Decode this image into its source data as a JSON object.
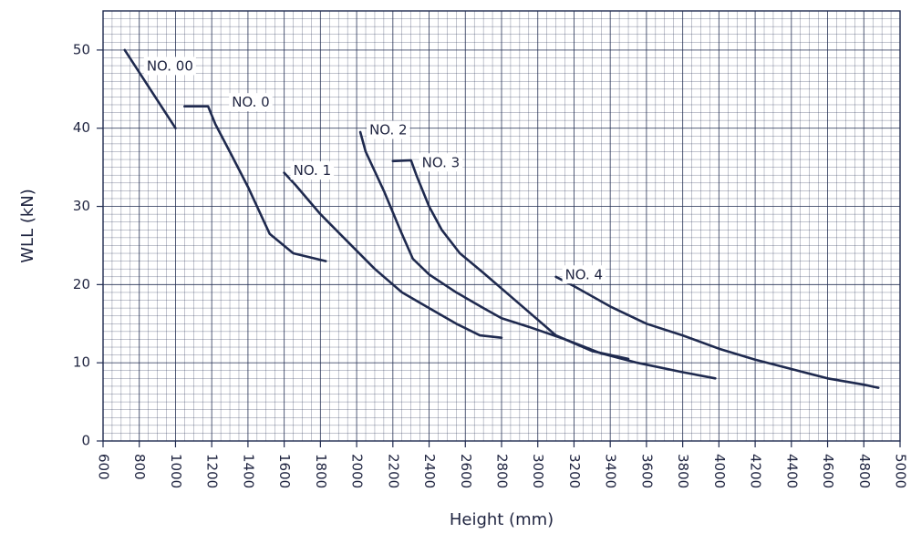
{
  "chart_data": {
    "type": "line",
    "title": "",
    "xlabel": "Height (mm)",
    "ylabel": "WLL (kN)",
    "xlim": [
      600,
      5000
    ],
    "ylim": [
      0,
      55
    ],
    "x_ticks": [
      600,
      800,
      1000,
      1200,
      1400,
      1600,
      1800,
      2000,
      2200,
      2400,
      2600,
      2800,
      3000,
      3200,
      3400,
      3600,
      3800,
      4000,
      4200,
      4400,
      4600,
      4800,
      5000
    ],
    "x_tick_labels": [
      "600",
      "800",
      "1000",
      "1200",
      "1400",
      "1600",
      "1800",
      "2000",
      "2200",
      "2400",
      "2600",
      "2800",
      "3000",
      "3200",
      "3400",
      "3600",
      "3800",
      "4000",
      "4200",
      "4400",
      "4600",
      "4800",
      "5000"
    ],
    "y_ticks": [
      0,
      10,
      20,
      30,
      40,
      50
    ],
    "y_tick_labels": [
      "0",
      "10",
      "20",
      "30",
      "40",
      "50"
    ],
    "grid": true,
    "colors": {
      "line": "#1f2a4f",
      "grid": "#1f2a4f",
      "text": "#1f2440"
    },
    "series": [
      {
        "name": "NO. 00",
        "points": [
          [
            720,
            50
          ],
          [
            1000,
            40
          ]
        ]
      },
      {
        "name": "NO. 0",
        "points": [
          [
            1050,
            42.8
          ],
          [
            1180,
            42.8
          ],
          [
            1220,
            40.5
          ],
          [
            1300,
            37
          ],
          [
            1400,
            32.5
          ],
          [
            1520,
            26.5
          ],
          [
            1650,
            24
          ],
          [
            1830,
            23
          ]
        ]
      },
      {
        "name": "NO. 1",
        "points": [
          [
            1600,
            34.3
          ],
          [
            1660,
            32.8
          ],
          [
            1800,
            29
          ],
          [
            1950,
            25.5
          ],
          [
            2100,
            22
          ],
          [
            2250,
            19
          ],
          [
            2400,
            17
          ],
          [
            2550,
            15
          ],
          [
            2680,
            13.5
          ],
          [
            2800,
            13.2
          ]
        ]
      },
      {
        "name": "NO. 2",
        "points": [
          [
            2020,
            39.5
          ],
          [
            2050,
            37
          ],
          [
            2150,
            32
          ],
          [
            2240,
            27
          ],
          [
            2310,
            23.3
          ],
          [
            2400,
            21.3
          ],
          [
            2550,
            19
          ],
          [
            2700,
            17
          ],
          [
            2800,
            15.7
          ],
          [
            2950,
            14.6
          ],
          [
            3150,
            13
          ],
          [
            3350,
            11.2
          ],
          [
            3550,
            10
          ],
          [
            3800,
            8.8
          ],
          [
            3980,
            8
          ]
        ]
      },
      {
        "name": "NO. 3",
        "points": [
          [
            2200,
            35.8
          ],
          [
            2300,
            35.9
          ],
          [
            2330,
            34
          ],
          [
            2400,
            30
          ],
          [
            2470,
            27
          ],
          [
            2570,
            24
          ],
          [
            2700,
            21.5
          ],
          [
            2900,
            17.5
          ],
          [
            3100,
            13.5
          ],
          [
            3300,
            11.5
          ],
          [
            3500,
            10.5
          ]
        ]
      },
      {
        "name": "NO. 4",
        "points": [
          [
            3100,
            21
          ],
          [
            3200,
            19.8
          ],
          [
            3400,
            17.2
          ],
          [
            3600,
            15
          ],
          [
            3800,
            13.5
          ],
          [
            4000,
            11.8
          ],
          [
            4200,
            10.4
          ],
          [
            4400,
            9.2
          ],
          [
            4600,
            8
          ],
          [
            4800,
            7.2
          ],
          [
            4880,
            6.8
          ]
        ]
      }
    ]
  }
}
